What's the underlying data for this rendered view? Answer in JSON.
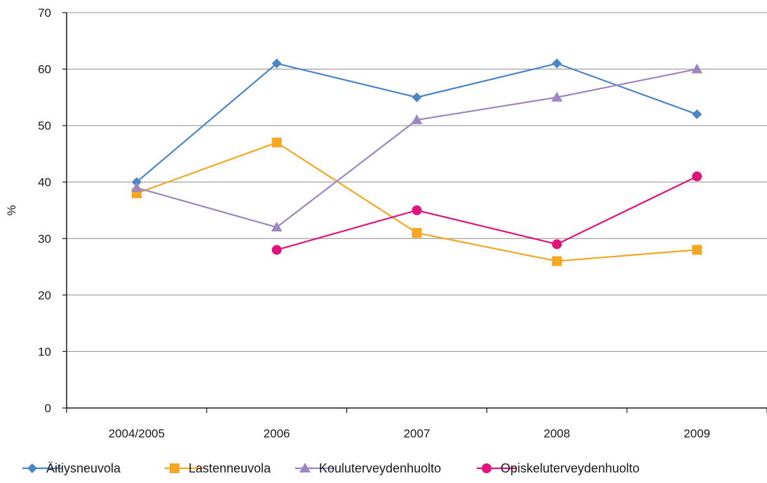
{
  "chart_data": {
    "type": "line",
    "title": "",
    "xlabel": "",
    "ylabel": "%",
    "ylim": [
      0,
      70
    ],
    "yticks": [
      0,
      10,
      20,
      30,
      40,
      50,
      60,
      70
    ],
    "categories": [
      "2004/2005",
      "2006",
      "2007",
      "2008",
      "2009"
    ],
    "grid": true,
    "legend_position": "bottom",
    "series": [
      {
        "name": "Äitiysneuvola",
        "color": "#4a86c5",
        "marker": "diamond",
        "values": [
          40,
          61,
          55,
          61,
          52
        ]
      },
      {
        "name": "Lastenneuvola",
        "color": "#f5a623",
        "marker": "square",
        "values": [
          38,
          47,
          31,
          26,
          28
        ]
      },
      {
        "name": "Kouluterveydenhuolto",
        "color": "#9d87c1",
        "marker": "triangle",
        "values": [
          39,
          32,
          51,
          55,
          60
        ]
      },
      {
        "name": "Opiskeluterveydenhuolto",
        "color": "#e0147b",
        "marker": "circle",
        "values": [
          null,
          28,
          35,
          29,
          41
        ]
      }
    ]
  }
}
